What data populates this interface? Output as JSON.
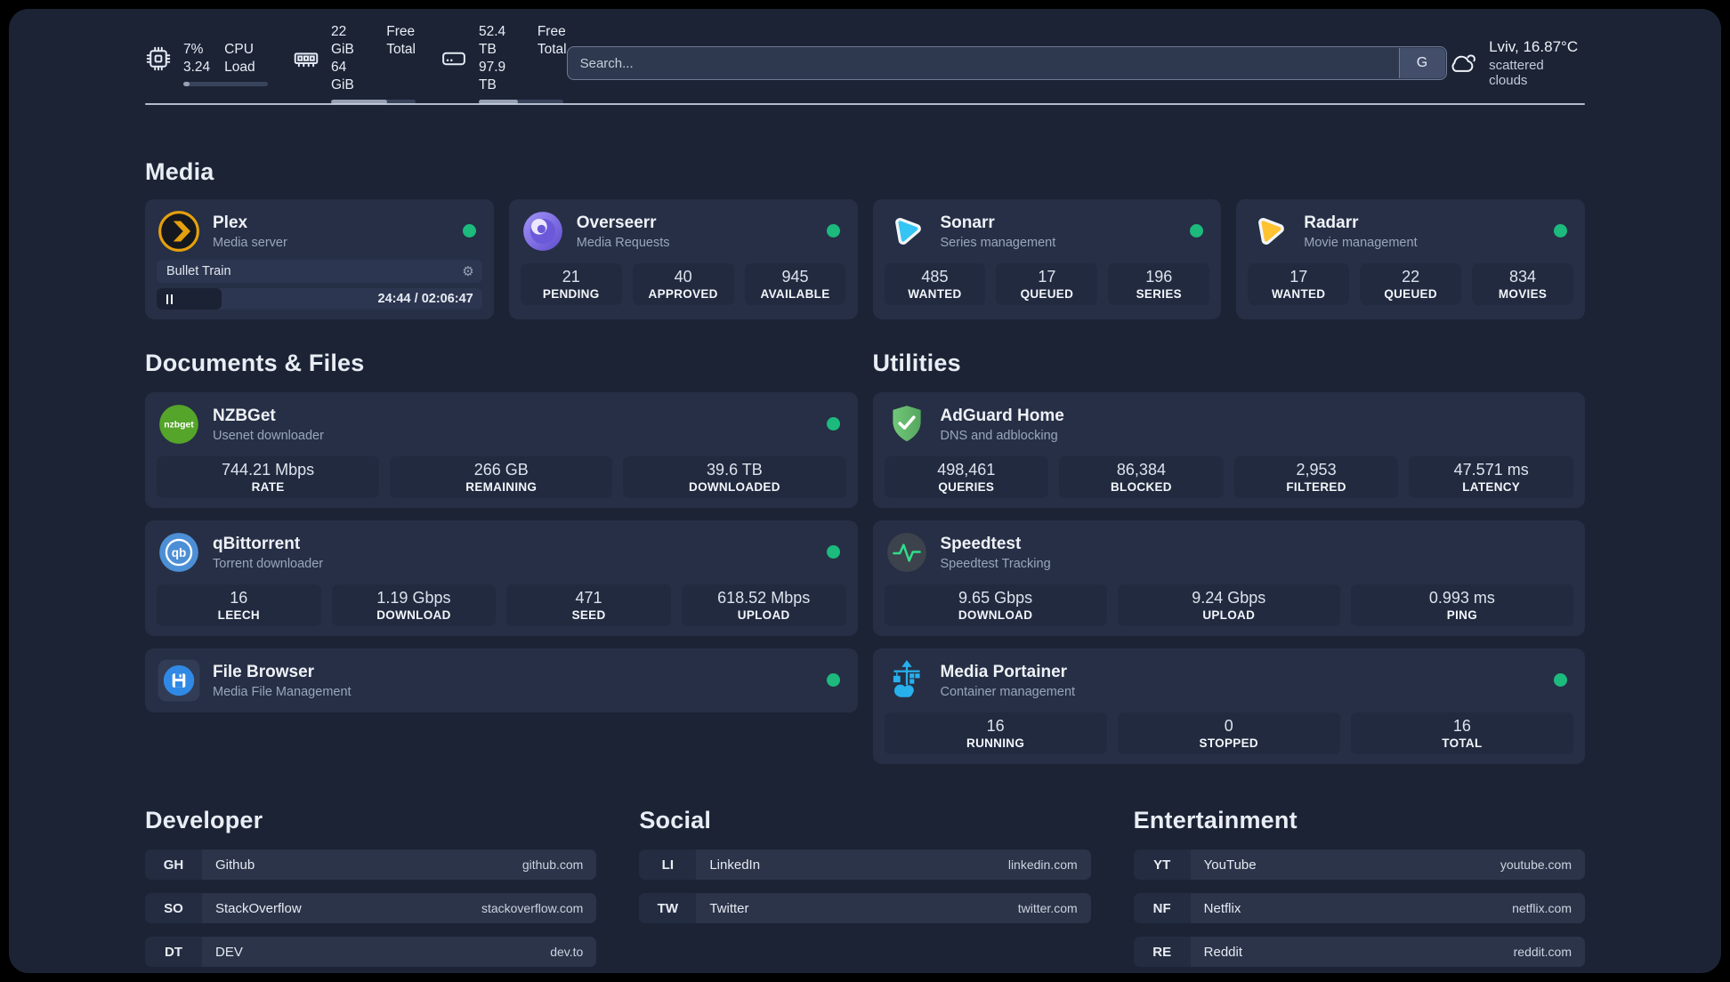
{
  "colors": {
    "status": "#1cba7d",
    "plex": "#e5a00d",
    "sonarr": "#35c5f4",
    "radarr": "#ffc230",
    "nzbget": "#54a529",
    "qbittorrent": "#4d8fd6",
    "filebrowser": "#2f89e5",
    "adguard": "#67bd6f",
    "speedtest": "#2fde8b",
    "portainer": "#27b0ec"
  },
  "topbar": {
    "stats": [
      {
        "values": [
          "7%",
          "3.24"
        ],
        "labels": [
          "CPU",
          "Load"
        ],
        "percent": 7
      },
      {
        "values": [
          "22 GiB",
          "64 GiB"
        ],
        "labels": [
          "Free",
          "Total"
        ],
        "percent": 66
      },
      {
        "values": [
          "52.4 TB",
          "97.9 TB"
        ],
        "labels": [
          "Free",
          "Total"
        ],
        "percent": 46
      }
    ],
    "search": {
      "placeholder": "Search...",
      "button": "G"
    },
    "weather": {
      "location": "Lviv, 16.87°C",
      "condition": "scattered clouds"
    }
  },
  "sections": {
    "media": {
      "title": "Media",
      "plex": {
        "name": "Plex",
        "desc": "Media server",
        "now_playing": "Bullet Train",
        "time": "24:44 / 02:06:47",
        "progress_percent": 20
      },
      "overseerr": {
        "name": "Overseerr",
        "desc": "Media Requests",
        "stats": [
          {
            "value": "21",
            "label": "PENDING"
          },
          {
            "value": "40",
            "label": "APPROVED"
          },
          {
            "value": "945",
            "label": "AVAILABLE"
          }
        ]
      },
      "sonarr": {
        "name": "Sonarr",
        "desc": "Series management",
        "stats": [
          {
            "value": "485",
            "label": "WANTED"
          },
          {
            "value": "17",
            "label": "QUEUED"
          },
          {
            "value": "196",
            "label": "SERIES"
          }
        ]
      },
      "radarr": {
        "name": "Radarr",
        "desc": "Movie management",
        "stats": [
          {
            "value": "17",
            "label": "WANTED"
          },
          {
            "value": "22",
            "label": "QUEUED"
          },
          {
            "value": "834",
            "label": "MOVIES"
          }
        ]
      }
    },
    "documents": {
      "title": "Documents & Files",
      "nzbget": {
        "name": "NZBGet",
        "desc": "Usenet downloader",
        "stats": [
          {
            "value": "744.21 Mbps",
            "label": "RATE"
          },
          {
            "value": "266 GB",
            "label": "REMAINING"
          },
          {
            "value": "39.6 TB",
            "label": "DOWNLOADED"
          }
        ]
      },
      "qbittorrent": {
        "name": "qBittorrent",
        "desc": "Torrent downloader",
        "stats": [
          {
            "value": "16",
            "label": "LEECH"
          },
          {
            "value": "1.19 Gbps",
            "label": "DOWNLOAD"
          },
          {
            "value": "471",
            "label": "SEED"
          },
          {
            "value": "618.52 Mbps",
            "label": "UPLOAD"
          }
        ]
      },
      "filebrowser": {
        "name": "File Browser",
        "desc": "Media File Management"
      }
    },
    "utilities": {
      "title": "Utilities",
      "adguard": {
        "name": "AdGuard Home",
        "desc": "DNS and adblocking",
        "stats": [
          {
            "value": "498,461",
            "label": "QUERIES"
          },
          {
            "value": "86,384",
            "label": "BLOCKED"
          },
          {
            "value": "2,953",
            "label": "FILTERED"
          },
          {
            "value": "47.571 ms",
            "label": "LATENCY"
          }
        ]
      },
      "speedtest": {
        "name": "Speedtest",
        "desc": "Speedtest Tracking",
        "stats": [
          {
            "value": "9.65 Gbps",
            "label": "DOWNLOAD"
          },
          {
            "value": "9.24 Gbps",
            "label": "UPLOAD"
          },
          {
            "value": "0.993 ms",
            "label": "PING"
          }
        ]
      },
      "portainer": {
        "name": "Media Portainer",
        "desc": "Container management",
        "stats": [
          {
            "value": "16",
            "label": "RUNNING"
          },
          {
            "value": "0",
            "label": "STOPPED"
          },
          {
            "value": "16",
            "label": "TOTAL"
          }
        ]
      }
    },
    "links": {
      "developer": {
        "title": "Developer",
        "items": [
          {
            "abbr": "GH",
            "name": "Github",
            "url": "github.com"
          },
          {
            "abbr": "SO",
            "name": "StackOverflow",
            "url": "stackoverflow.com"
          },
          {
            "abbr": "DT",
            "name": "DEV",
            "url": "dev.to"
          }
        ]
      },
      "social": {
        "title": "Social",
        "items": [
          {
            "abbr": "LI",
            "name": "LinkedIn",
            "url": "linkedin.com"
          },
          {
            "abbr": "TW",
            "name": "Twitter",
            "url": "twitter.com"
          }
        ]
      },
      "entertainment": {
        "title": "Entertainment",
        "items": [
          {
            "abbr": "YT",
            "name": "YouTube",
            "url": "youtube.com"
          },
          {
            "abbr": "NF",
            "name": "Netflix",
            "url": "netflix.com"
          },
          {
            "abbr": "RE",
            "name": "Reddit",
            "url": "reddit.com"
          }
        ]
      }
    }
  }
}
